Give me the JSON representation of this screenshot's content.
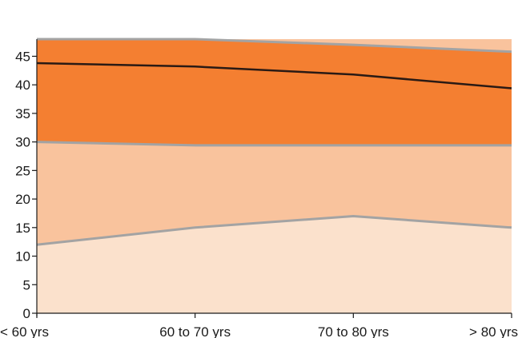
{
  "chart_data": {
    "type": "area",
    "categories": [
      "< 60 yrs",
      "60 to 70 yrs",
      "70 to 80 yrs",
      "> 80 yrs"
    ],
    "yticks": [
      0,
      5,
      10,
      15,
      20,
      25,
      30,
      35,
      40,
      45
    ],
    "ylim": [
      0,
      48
    ],
    "grid": false,
    "bands": [
      {
        "lower": [
          0,
          0,
          0,
          0
        ],
        "upper": [
          12,
          15,
          17,
          15
        ],
        "color": "#fbe1cc"
      },
      {
        "lower": [
          12,
          15,
          17,
          15
        ],
        "upper": [
          30,
          29.4,
          29.4,
          29.4
        ],
        "color": "#f9c39d"
      },
      {
        "lower": [
          30,
          29.4,
          29.4,
          29.4
        ],
        "upper": [
          48,
          48,
          47,
          45.8
        ],
        "color": "#f47f31"
      },
      {
        "lower": [
          48,
          48,
          47,
          45.8
        ],
        "upper": [
          48,
          48,
          48,
          48
        ],
        "color": "#f9c39d"
      }
    ],
    "boundary_color": "#a3a3a3",
    "line": {
      "values": [
        43.8,
        43.2,
        41.8,
        39.4
      ],
      "color": "#2a1a14"
    }
  }
}
